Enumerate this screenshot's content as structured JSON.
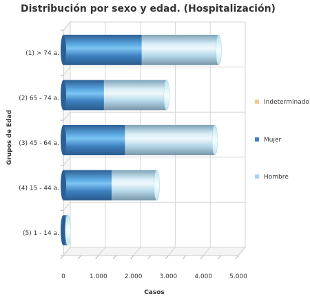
{
  "chart_data": {
    "type": "bar",
    "orientation": "horizontal",
    "stacked": true,
    "title": "Distribución por sexo y edad. (Hospitalización)",
    "xlabel": "Casos",
    "ylabel": "Grupos de Edad",
    "categories": [
      "(1) > 74 a.",
      "(2) 65 - 74 a.",
      "(3) 45 - 64 a.",
      "(4) 15 - 44 a.",
      "(5) 1 - 14 a."
    ],
    "series": [
      {
        "name": "Mujer",
        "color": "#3d7fbf",
        "values": [
          2240,
          1160,
          1760,
          1380,
          70
        ]
      },
      {
        "name": "Hombre",
        "color": "#a9d3ec",
        "values": [
          2200,
          1790,
          2570,
          1290,
          60
        ]
      },
      {
        "name": "Indeterminado",
        "color": "#f3c98b",
        "values": [
          0,
          0,
          0,
          0,
          0
        ]
      }
    ],
    "legend_order": [
      "Indeterminado",
      "Mujer",
      "Hombre"
    ],
    "xlim": [
      0,
      5000
    ],
    "xticks": [
      "0",
      "1.000",
      "2.000",
      "3.000",
      "4.000",
      "5.000"
    ],
    "grid": true,
    "legend_position": "right"
  }
}
